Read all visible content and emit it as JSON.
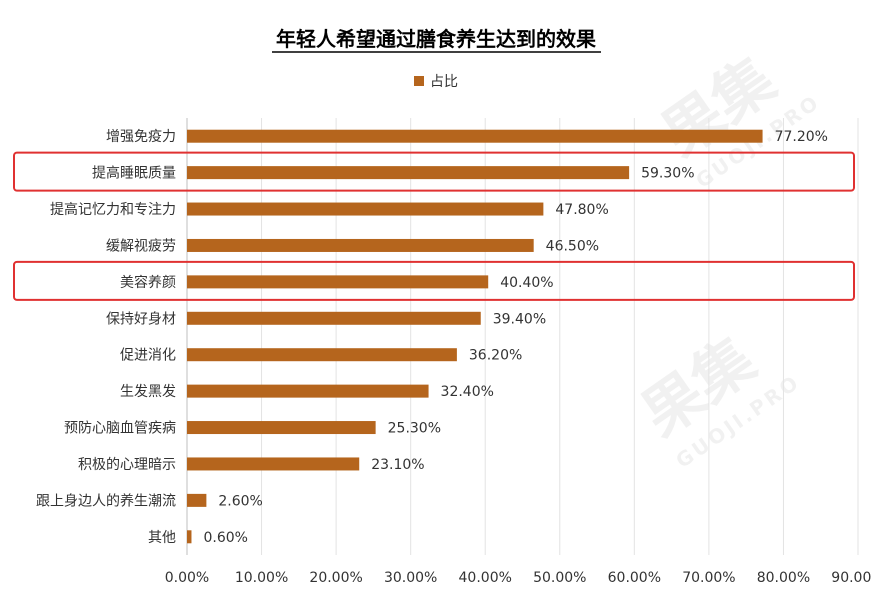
{
  "chart_data": {
    "type": "bar",
    "orientation": "horizontal",
    "title": "年轻人希望通过膳食养生达到的效果",
    "legend": {
      "position": "top",
      "entries": [
        "占比"
      ]
    },
    "series": [
      {
        "name": "占比",
        "color": "#b5651d",
        "values": [
          77.2,
          59.3,
          47.8,
          46.5,
          40.4,
          39.4,
          36.2,
          32.4,
          25.3,
          23.1,
          2.6,
          0.6
        ]
      }
    ],
    "categories": [
      "增强免疫力",
      "提高睡眠质量",
      "提高记忆力和专注力",
      "缓解视疲劳",
      "美容养颜",
      "保持好身材",
      "促进消化",
      "生发黑发",
      "预防心脑血管疾病",
      "积极的心理暗示",
      "跟上身边人的养生潮流",
      "其他"
    ],
    "data_labels": [
      "77.20%",
      "59.30%",
      "47.80%",
      "46.50%",
      "40.40%",
      "39.40%",
      "36.20%",
      "32.40%",
      "25.30%",
      "23.10%",
      "2.60%",
      "0.60%"
    ],
    "x_ticks": [
      "0.00%",
      "10.00%",
      "20.00%",
      "30.00%",
      "40.00%",
      "50.00%",
      "60.00%",
      "70.00%",
      "80.00%",
      "90.00%"
    ],
    "xlim": [
      0,
      90
    ],
    "gridlines": true,
    "highlighted_categories": [
      "提高睡眠质量",
      "美容养颜"
    ],
    "highlight_color": "#e03131"
  },
  "watermark": {
    "brand": "果集",
    "sub": "GUOJI.PRO"
  }
}
